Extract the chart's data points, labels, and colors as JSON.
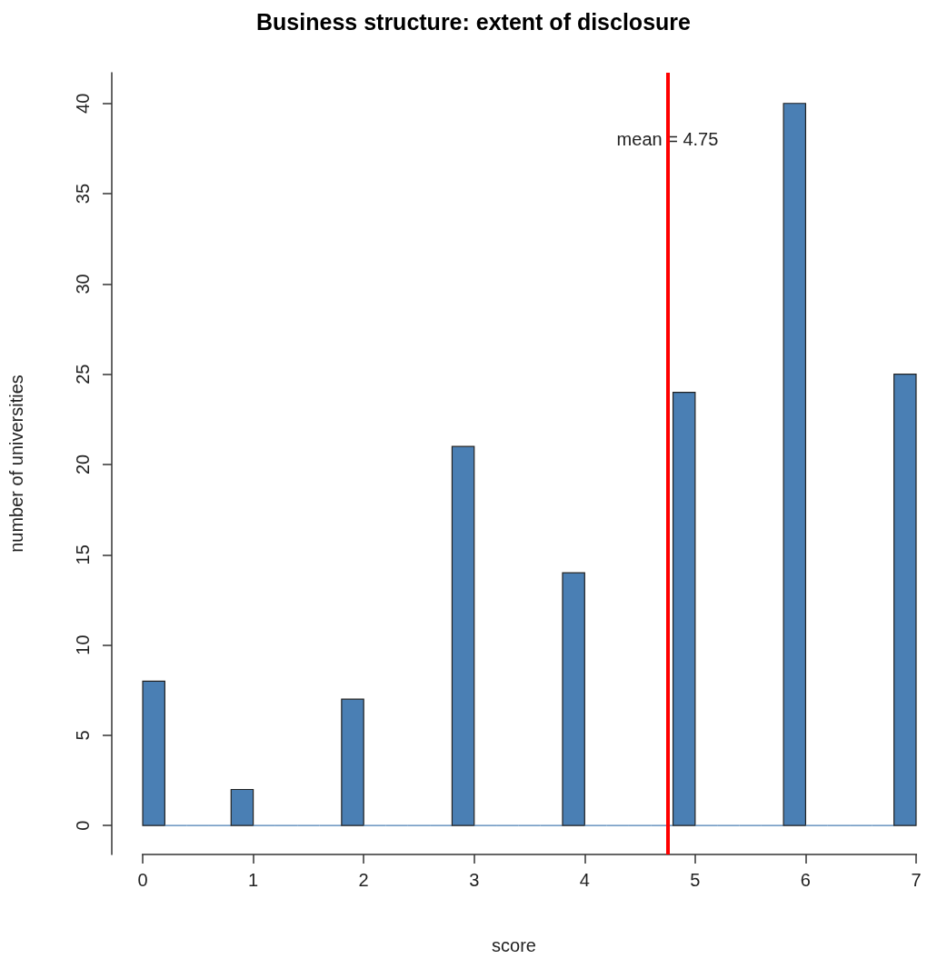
{
  "chart_data": {
    "type": "histogram",
    "title": "Business structure: extent of disclosure",
    "xlabel": "score",
    "ylabel": "number of universities",
    "bins": [
      0,
      0.2,
      0.4,
      0.6,
      0.8,
      1,
      1.2,
      1.4,
      1.6,
      1.8,
      2,
      2.2,
      2.4,
      2.6,
      2.8,
      3,
      3.2,
      3.4,
      3.6,
      3.8,
      4,
      4.2,
      4.4,
      4.6,
      4.8,
      5,
      5.2,
      5.4,
      5.6,
      5.8,
      6,
      6.2,
      6.4,
      6.6,
      6.8,
      7
    ],
    "values": [
      8,
      0,
      0,
      0,
      2,
      0,
      0,
      0,
      0,
      7,
      0,
      0,
      0,
      0,
      21,
      0,
      0,
      0,
      0,
      14,
      0,
      0,
      0,
      0,
      24,
      0,
      0,
      0,
      0,
      40,
      0,
      0,
      0,
      0,
      25
    ],
    "color": "#4a7fb4",
    "xlim": [
      -0.28,
      7
    ],
    "xticks": [
      0,
      1,
      2,
      3,
      4,
      5,
      6,
      7
    ],
    "ylim": [
      -1.6,
      41.7
    ],
    "yticks": [
      0,
      5,
      10,
      15,
      20,
      25,
      30,
      35,
      40
    ],
    "ref_lines": [
      {
        "axis": "x",
        "value": 4.75,
        "label": "mean = 4.75",
        "color": "#ff0000"
      }
    ]
  }
}
